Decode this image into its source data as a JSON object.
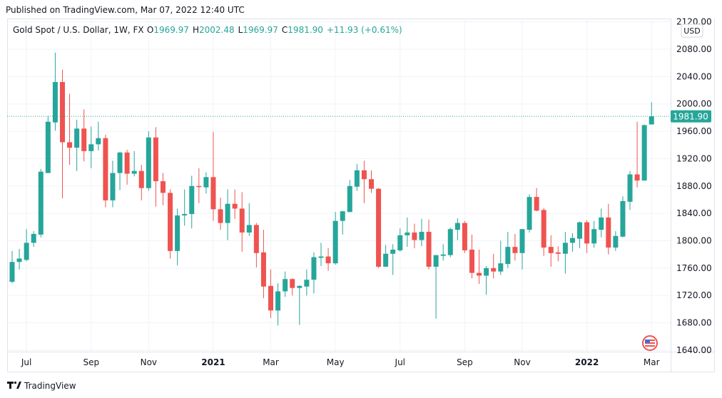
{
  "published": "Published on TradingView.com, Mar 07, 2022 12:40 UTC",
  "legend": {
    "symbol": "Gold Spot / U.S. Dollar, 1W, FX",
    "o_label": "O",
    "o_value": "1969.97",
    "h_label": "H",
    "h_value": "2002.48",
    "l_label": "L",
    "l_value": "1969.97",
    "c_label": "C",
    "c_value": "1981.90",
    "change": "+11.93 (+0.61%)"
  },
  "currency": "USD",
  "last_price_label": "1981.90",
  "footer_brand": "TradingView",
  "colors": {
    "up": "#26a69a",
    "down": "#ef5350",
    "grid": "#f0f3fa",
    "text": "#131722"
  },
  "chart_data": {
    "type": "candlestick",
    "title": "Gold Spot / U.S. Dollar, 1W, FX",
    "ylim": [
      1640,
      2120
    ],
    "last_price": 1981.9,
    "grid": true,
    "y_ticks": [
      "1640.00",
      "1680.00",
      "1720.00",
      "1760.00",
      "1800.00",
      "1840.00",
      "1880.00",
      "1920.00",
      "1960.00",
      "2000.00",
      "2040.00",
      "2080.00",
      "2120.00"
    ],
    "x_ticks": [
      {
        "label": "Jul",
        "index": 2,
        "bold": false
      },
      {
        "label": "Sep",
        "index": 11,
        "bold": false
      },
      {
        "label": "Nov",
        "index": 19,
        "bold": false
      },
      {
        "label": "2021",
        "index": 28,
        "bold": true
      },
      {
        "label": "Mar",
        "index": 36,
        "bold": false
      },
      {
        "label": "May",
        "index": 45,
        "bold": false
      },
      {
        "label": "Jul",
        "index": 54,
        "bold": false
      },
      {
        "label": "Sep",
        "index": 63,
        "bold": false
      },
      {
        "label": "Nov",
        "index": 71,
        "bold": false
      },
      {
        "label": "2022",
        "index": 80,
        "bold": true
      },
      {
        "label": "Mar",
        "index": 89,
        "bold": false
      }
    ],
    "ohlc": [
      [
        1740,
        1785,
        1738,
        1769
      ],
      [
        1769,
        1788,
        1758,
        1774
      ],
      [
        1772,
        1817,
        1770,
        1797
      ],
      [
        1797,
        1814,
        1791,
        1810
      ],
      [
        1809,
        1905,
        1805,
        1901
      ],
      [
        1899,
        1983,
        1899,
        1974
      ],
      [
        1973,
        2075,
        1961,
        2032
      ],
      [
        2032,
        2050,
        1862,
        1944
      ],
      [
        1944,
        2015,
        1911,
        1936
      ],
      [
        1936,
        1977,
        1902,
        1964
      ],
      [
        1964,
        1992,
        1916,
        1931
      ],
      [
        1931,
        1967,
        1906,
        1941
      ],
      [
        1941,
        1974,
        1932,
        1950
      ],
      [
        1950,
        1955,
        1849,
        1859
      ],
      [
        1859,
        1917,
        1849,
        1899
      ],
      [
        1899,
        1930,
        1874,
        1929
      ],
      [
        1929,
        1933,
        1882,
        1898
      ],
      [
        1898,
        1931,
        1894,
        1902
      ],
      [
        1902,
        1911,
        1859,
        1877
      ],
      [
        1877,
        1960,
        1873,
        1951
      ],
      [
        1951,
        1966,
        1850,
        1887
      ],
      [
        1887,
        1899,
        1852,
        1870
      ],
      [
        1870,
        1875,
        1774,
        1785
      ],
      [
        1785,
        1847,
        1764,
        1837
      ],
      [
        1837,
        1875,
        1822,
        1839
      ],
      [
        1839,
        1895,
        1818,
        1880
      ],
      [
        1880,
        1906,
        1855,
        1879
      ],
      [
        1878,
        1900,
        1869,
        1893
      ],
      [
        1893,
        1959,
        1829,
        1846
      ],
      [
        1846,
        1863,
        1816,
        1826
      ],
      [
        1826,
        1875,
        1801,
        1854
      ],
      [
        1854,
        1875,
        1832,
        1847
      ],
      [
        1847,
        1871,
        1784,
        1812
      ],
      [
        1812,
        1855,
        1807,
        1823
      ],
      [
        1823,
        1826,
        1761,
        1782
      ],
      [
        1783,
        1816,
        1716,
        1733
      ],
      [
        1734,
        1758,
        1687,
        1698
      ],
      [
        1698,
        1738,
        1676,
        1726
      ],
      [
        1726,
        1755,
        1718,
        1744
      ],
      [
        1744,
        1745,
        1720,
        1731
      ],
      [
        1731,
        1735,
        1677,
        1734
      ],
      [
        1733,
        1758,
        1720,
        1743
      ],
      [
        1743,
        1783,
        1723,
        1776
      ],
      [
        1775,
        1797,
        1763,
        1777
      ],
      [
        1777,
        1789,
        1756,
        1767
      ],
      [
        1767,
        1842,
        1765,
        1829
      ],
      [
        1829,
        1844,
        1809,
        1843
      ],
      [
        1842,
        1889,
        1842,
        1880
      ],
      [
        1879,
        1912,
        1873,
        1903
      ],
      [
        1903,
        1917,
        1855,
        1890
      ],
      [
        1890,
        1903,
        1870,
        1876
      ],
      [
        1876,
        1877,
        1760,
        1762
      ],
      [
        1762,
        1794,
        1762,
        1781
      ],
      [
        1781,
        1795,
        1750,
        1787
      ],
      [
        1786,
        1818,
        1784,
        1808
      ],
      [
        1808,
        1834,
        1791,
        1812
      ],
      [
        1812,
        1825,
        1789,
        1801
      ],
      [
        1801,
        1832,
        1792,
        1813
      ],
      [
        1813,
        1831,
        1758,
        1762
      ],
      [
        1762,
        1779,
        1686,
        1779
      ],
      [
        1778,
        1795,
        1771,
        1780
      ],
      [
        1779,
        1819,
        1776,
        1817
      ],
      [
        1816,
        1833,
        1801,
        1826
      ],
      [
        1826,
        1829,
        1782,
        1786
      ],
      [
        1787,
        1809,
        1745,
        1753
      ],
      [
        1753,
        1787,
        1737,
        1749
      ],
      [
        1749,
        1763,
        1721,
        1760
      ],
      [
        1760,
        1781,
        1745,
        1755
      ],
      [
        1755,
        1800,
        1750,
        1767
      ],
      [
        1766,
        1813,
        1760,
        1791
      ],
      [
        1791,
        1810,
        1771,
        1782
      ],
      [
        1782,
        1817,
        1758,
        1817
      ],
      [
        1816,
        1868,
        1812,
        1864
      ],
      [
        1864,
        1877,
        1843,
        1844
      ],
      [
        1845,
        1848,
        1778,
        1790
      ],
      [
        1791,
        1808,
        1762,
        1782
      ],
      [
        1783,
        1792,
        1770,
        1781
      ],
      [
        1781,
        1813,
        1752,
        1797
      ],
      [
        1797,
        1811,
        1784,
        1804
      ],
      [
        1803,
        1828,
        1789,
        1827
      ],
      [
        1827,
        1830,
        1782,
        1796
      ],
      [
        1796,
        1829,
        1790,
        1817
      ],
      [
        1816,
        1847,
        1805,
        1834
      ],
      [
        1834,
        1854,
        1780,
        1790
      ],
      [
        1790,
        1814,
        1785,
        1807
      ],
      [
        1806,
        1865,
        1805,
        1858
      ],
      [
        1857,
        1902,
        1845,
        1897
      ],
      [
        1897,
        1974,
        1878,
        1888
      ],
      [
        1888,
        1970,
        1888,
        1969
      ],
      [
        1970,
        2002.48,
        1969.97,
        1981.9
      ]
    ]
  }
}
